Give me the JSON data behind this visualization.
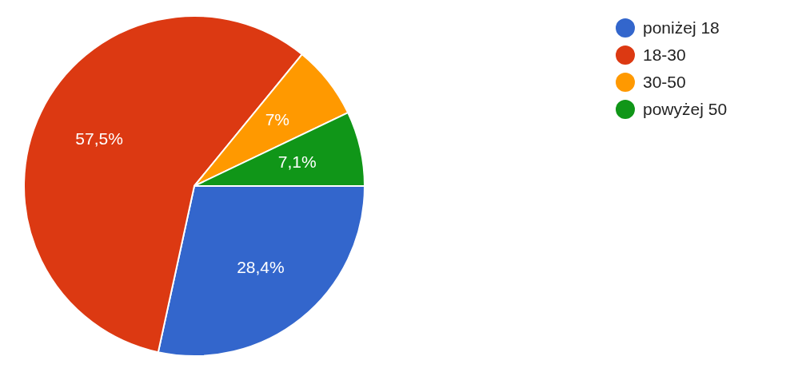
{
  "chart_data": {
    "type": "pie",
    "categories": [
      "poniżej 18",
      "18-30",
      "30-50",
      "powyżej 50"
    ],
    "values": [
      28.4,
      57.5,
      7,
      7.1
    ],
    "colors": [
      "#3366cc",
      "#dc3912",
      "#ff9900",
      "#109618"
    ],
    "value_labels": [
      "28,4%",
      "57,5%",
      "7%",
      "7,1%"
    ],
    "legend": "top right"
  }
}
